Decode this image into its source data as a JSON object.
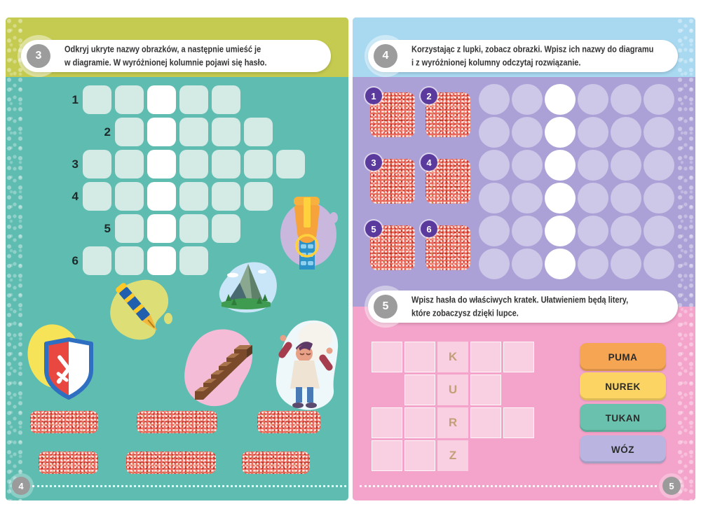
{
  "book": {
    "left_page": {
      "page_number": "4",
      "task": {
        "number": "3",
        "line1": "Odkryj ukryte nazwy obrazków, a następnie umieść je",
        "line2": "w diagramie. W wyróżnionej kolumnie pojawi się hasło."
      },
      "diagram": {
        "highlight_col": 3,
        "rows": [
          {
            "label": "1",
            "start": 1,
            "len": 5
          },
          {
            "label": "2",
            "start": 2,
            "len": 5
          },
          {
            "label": "3",
            "start": 1,
            "len": 7
          },
          {
            "label": "4",
            "start": 1,
            "len": 6
          },
          {
            "label": "5",
            "start": 2,
            "len": 4
          },
          {
            "label": "6",
            "start": 1,
            "len": 4
          }
        ]
      },
      "stickers": [
        "zipper",
        "mountain",
        "fountain-pen",
        "shield",
        "chocolate-stairs",
        "chef"
      ],
      "hidden_plates_count": 6
    },
    "right_page": {
      "page_number": "5",
      "task_top": {
        "number": "4",
        "line1": "Korzystając z lupki, zobacz obrazki. Wpisz ich nazwy do diagramu",
        "line2": "i z wyróżnionej kolumny odczytaj rozwiązanie."
      },
      "picture_tiles": [
        {
          "number": "1"
        },
        {
          "number": "2"
        },
        {
          "number": "3"
        },
        {
          "number": "4"
        },
        {
          "number": "5"
        },
        {
          "number": "6"
        }
      ],
      "answer_grid": {
        "rows": 6,
        "cols": 6,
        "highlight_col": 3
      },
      "task_bottom": {
        "number": "5",
        "line1": "Wpisz hasła do właściwych kratek. Ułatwieniem będą litery,",
        "line2": "które zobaczysz dzięki lupce."
      },
      "letter_grid": {
        "highlight_col": 3,
        "hidden_letters": [
          "K",
          "U",
          "R",
          "Z"
        ],
        "rows": [
          {
            "start": 1,
            "len": 5
          },
          {
            "start": 2,
            "len": 3
          },
          {
            "start": 1,
            "len": 5
          },
          {
            "start": 1,
            "len": 3
          }
        ]
      },
      "word_bank": [
        {
          "label": "PUMA",
          "color": "#f6a653"
        },
        {
          "label": "NUREK",
          "color": "#fcd463"
        },
        {
          "label": "TUKAN",
          "color": "#6ac2ae"
        },
        {
          "label": "WÓZ",
          "color": "#b9b5e0"
        }
      ]
    },
    "colors": {
      "left_band": "#c5cb50",
      "left_page": "#5fbcb1",
      "left_cell": "#d3eae5",
      "right_band": "#a8d9f1",
      "right_page_top": "#aba1d6",
      "right_page_bottom": "#f4a3ca",
      "answer_circle": "#cdc7e8",
      "letter_cell": "#f9cfe2",
      "speckle": "#ee6c5f",
      "tile_badge": "#5b3a9e",
      "task_number_circle": "#9c9c9c"
    }
  }
}
